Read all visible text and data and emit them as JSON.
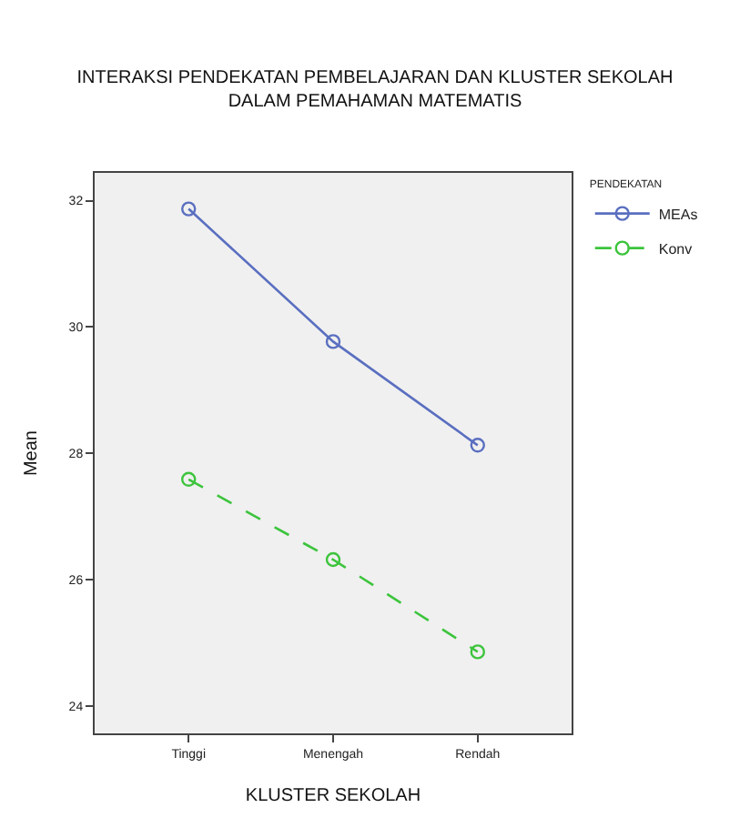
{
  "chart_data": {
    "type": "line",
    "title": "INTERAKSI PENDEKATAN PEMBELAJARAN DAN KLUSTER SEKOLAH\nDALAM PEMAHAMAN MATEMATIS",
    "xlabel": "KLUSTER SEKOLAH",
    "ylabel": "Mean",
    "legend_title": "PENDEKATAN",
    "categories": [
      "Tinggi",
      "Menengah",
      "Rendah"
    ],
    "series": [
      {
        "name": "MEAs",
        "color": "#5a6fc0",
        "values": [
          31.87,
          29.77,
          28.13
        ],
        "line_style": "solid"
      },
      {
        "name": "Konv",
        "color": "#3cc43c",
        "values": [
          27.59,
          26.32,
          24.86
        ],
        "line_style": "dashed"
      }
    ],
    "ylim": [
      23.57,
      32.44
    ],
    "yticks": [
      24,
      26,
      28,
      30,
      32
    ],
    "grid": false,
    "legend": "top right",
    "marker": "circle"
  }
}
